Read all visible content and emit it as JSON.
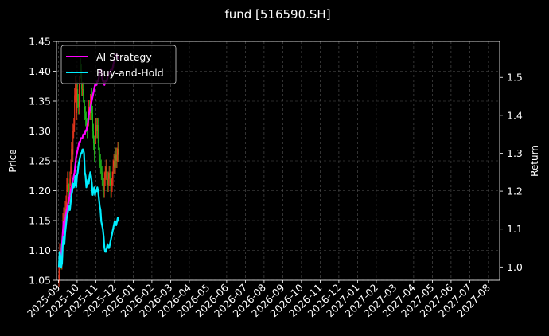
{
  "chart_data": {
    "type": "line",
    "title": "fund [516590.SH]",
    "ylabel": "Price",
    "ylabel_right": "Return",
    "ylim": [
      1.05,
      1.45
    ],
    "ylim_right": [
      0.965,
      1.595
    ],
    "yticks": [
      "1.05",
      "1.10",
      "1.15",
      "1.20",
      "1.25",
      "1.30",
      "1.35",
      "1.40",
      "1.45"
    ],
    "yticks_right": [
      "1.0",
      "1.1",
      "1.2",
      "1.3",
      "1.4",
      "1.5"
    ],
    "xticks": [
      "2025-09",
      "2025-10",
      "2025-11",
      "2025-12",
      "2026-01",
      "2026-02",
      "2026-03",
      "2026-04",
      "2026-05",
      "2026-06",
      "2026-07",
      "2026-08",
      "2026-09",
      "2026-10",
      "2026-11",
      "2026-12",
      "2027-01",
      "2027-02",
      "2027-03",
      "2027-04",
      "2027-05",
      "2027-06",
      "2027-07",
      "2027-08"
    ],
    "grid": true,
    "legend_position": "top-left",
    "colors": {
      "background": "#000000",
      "up": "#ff3b1f",
      "down": "#1fbf1f",
      "ai": "#ff00ff",
      "bh": "#00eeff",
      "grid": "#555555"
    },
    "series": [
      {
        "name": "AI Strategy",
        "axis": "right",
        "x": [
          0,
          1,
          2,
          3,
          4,
          5,
          6,
          7,
          8,
          9,
          10,
          11,
          12,
          13,
          14,
          15,
          16,
          17,
          18,
          19,
          20,
          21,
          22,
          23,
          24,
          25,
          26,
          27,
          28,
          29,
          30,
          31,
          32,
          33,
          34,
          35,
          36,
          37,
          38,
          39,
          40,
          41,
          42,
          43,
          44,
          45,
          46,
          47,
          48,
          49,
          50,
          51,
          52,
          53,
          54,
          55,
          56,
          57,
          58,
          59,
          60,
          61,
          62,
          63,
          64,
          65,
          66,
          67,
          68,
          69,
          70,
          71,
          72,
          73,
          74,
          75,
          76
        ],
        "values": [
          1.0,
          1.01,
          1.02,
          1.03,
          1.06,
          1.09,
          1.12,
          1.1,
          1.12,
          1.14,
          1.15,
          1.16,
          1.17,
          1.18,
          1.19,
          1.2,
          1.21,
          1.22,
          1.23,
          1.24,
          1.25,
          1.27,
          1.29,
          1.3,
          1.31,
          1.32,
          1.33,
          1.33,
          1.34,
          1.34,
          1.34,
          1.35,
          1.35,
          1.35,
          1.36,
          1.36,
          1.37,
          1.38,
          1.4,
          1.41,
          1.42,
          1.43,
          1.44,
          1.45,
          1.46,
          1.47,
          1.48,
          1.48,
          1.48,
          1.49,
          1.49,
          1.5,
          1.51,
          1.52,
          1.52,
          1.5,
          1.49,
          1.49,
          1.48,
          1.49,
          1.49,
          1.49,
          1.5,
          1.51,
          1.51,
          1.51,
          1.52,
          1.52,
          1.52,
          1.53,
          1.54,
          1.55,
          1.56,
          1.56,
          1.56,
          1.55,
          1.56
        ]
      },
      {
        "name": "Buy-and-Hold",
        "axis": "right",
        "x": [
          0,
          1,
          2,
          3,
          4,
          5,
          6,
          7,
          8,
          9,
          10,
          11,
          12,
          13,
          14,
          15,
          16,
          17,
          18,
          19,
          20,
          21,
          22,
          23,
          24,
          25,
          26,
          27,
          28,
          29,
          30,
          31,
          32,
          33,
          34,
          35,
          36,
          37,
          38,
          39,
          40,
          41,
          42,
          43,
          44,
          45,
          46,
          47,
          48,
          49,
          50,
          51,
          52,
          53,
          54,
          55,
          56,
          57,
          58,
          59,
          60,
          61,
          62,
          63,
          64,
          65,
          66,
          67,
          68,
          69,
          70,
          71,
          72,
          73,
          74,
          75,
          76
        ],
        "values": [
          1.0,
          1.04,
          1.03,
          1.0,
          1.01,
          1.06,
          1.08,
          1.06,
          1.09,
          1.11,
          1.13,
          1.14,
          1.15,
          1.16,
          1.15,
          1.17,
          1.19,
          1.2,
          1.22,
          1.21,
          1.22,
          1.24,
          1.21,
          1.24,
          1.25,
          1.27,
          1.28,
          1.29,
          1.3,
          1.3,
          1.31,
          1.31,
          1.3,
          1.25,
          1.24,
          1.21,
          1.22,
          1.23,
          1.22,
          1.24,
          1.25,
          1.24,
          1.22,
          1.19,
          1.2,
          1.21,
          1.19,
          1.2,
          1.2,
          1.21,
          1.2,
          1.18,
          1.16,
          1.15,
          1.12,
          1.11,
          1.1,
          1.08,
          1.05,
          1.04,
          1.04,
          1.05,
          1.06,
          1.05,
          1.05,
          1.06,
          1.07,
          1.08,
          1.09,
          1.1,
          1.11,
          1.12,
          1.12,
          1.11,
          1.12,
          1.13,
          1.12
        ]
      }
    ],
    "candles_close": [
      1.06,
      1.1,
      1.09,
      1.08,
      1.1,
      1.15,
      1.16,
      1.14,
      1.17,
      1.18,
      1.21,
      1.22,
      1.2,
      1.19,
      1.22,
      1.24,
      1.27,
      1.26,
      1.3,
      1.31,
      1.36,
      1.38,
      1.33,
      1.37,
      1.35,
      1.34,
      1.38,
      1.41,
      1.4,
      1.37,
      1.37,
      1.36,
      1.34,
      1.33,
      1.32,
      1.31,
      1.3,
      1.32,
      1.34,
      1.33,
      1.35,
      1.36,
      1.33,
      1.3,
      1.28,
      1.26,
      1.29,
      1.31,
      1.3,
      1.31,
      1.28,
      1.26,
      1.25,
      1.24,
      1.23,
      1.22,
      1.21,
      1.2,
      1.22,
      1.23,
      1.24,
      1.22,
      1.21,
      1.22,
      1.23,
      1.22,
      1.2,
      1.21,
      1.22,
      1.24,
      1.25,
      1.24,
      1.26,
      1.25,
      1.26,
      1.27,
      1.26
    ]
  }
}
